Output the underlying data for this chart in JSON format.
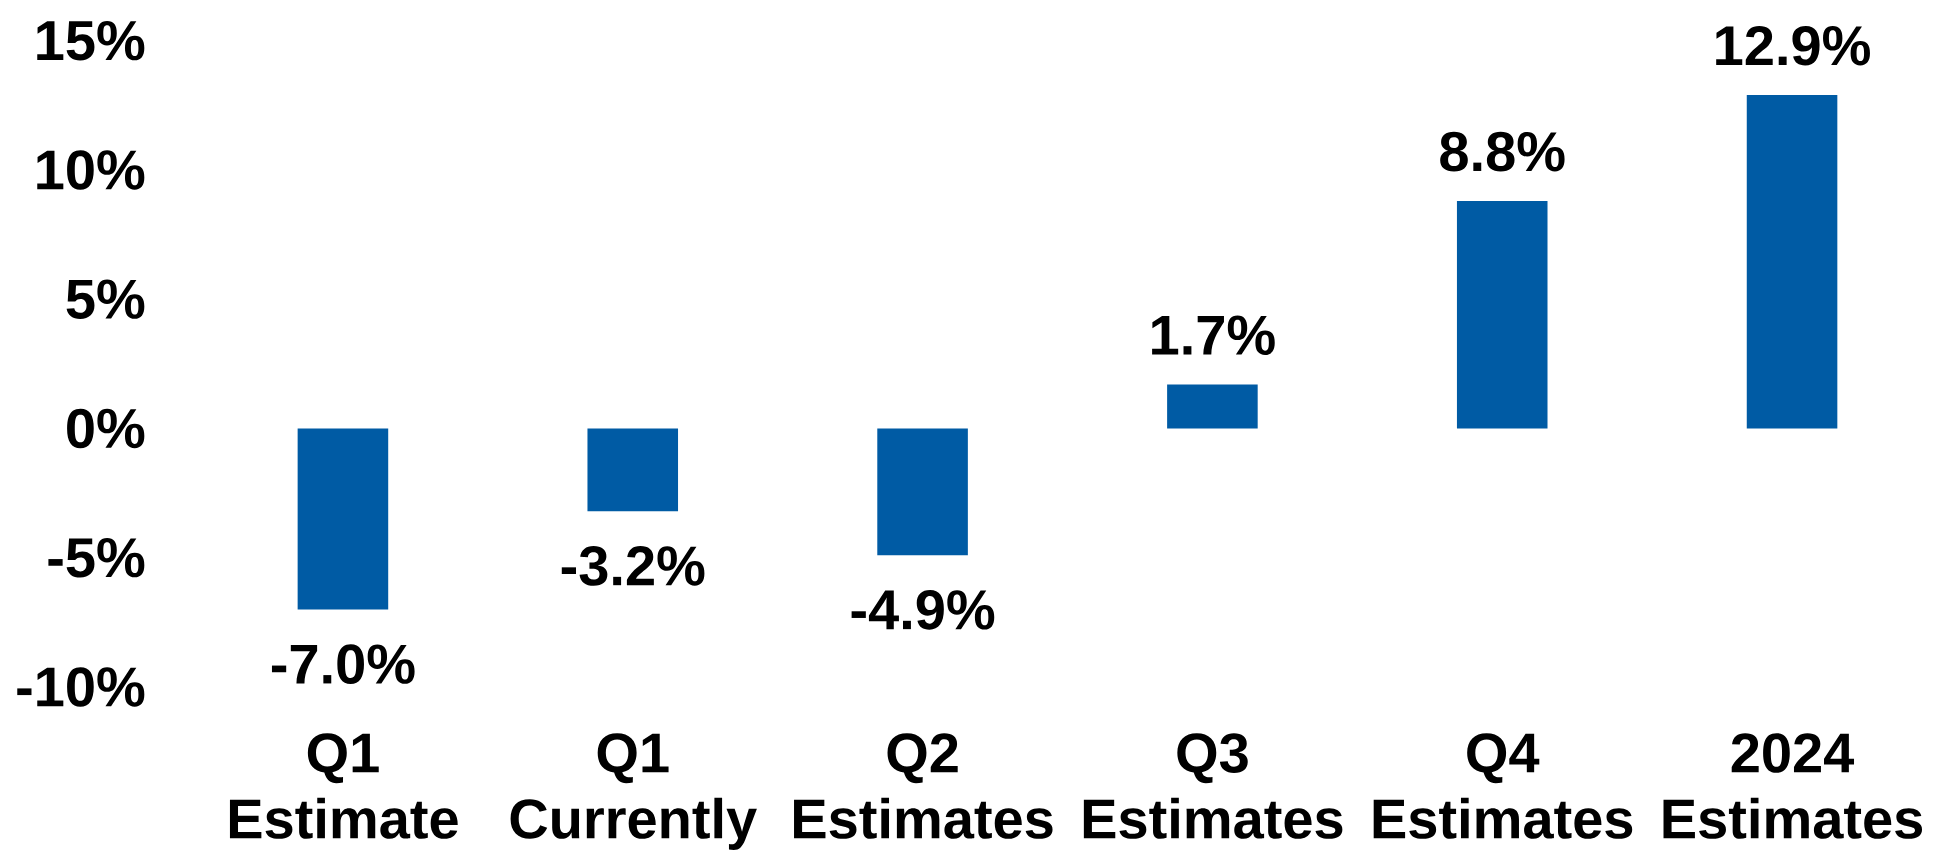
{
  "chart_data": {
    "type": "bar",
    "categories": [
      "Q1 Estimate",
      "Q1 Currently",
      "Q2 Estimates",
      "Q3 Estimates",
      "Q4 Estimates",
      "2024 Estimates"
    ],
    "values": [
      -7.0,
      -3.2,
      -4.9,
      1.7,
      8.8,
      12.9
    ],
    "value_labels": [
      "-7.0%",
      "-3.2%",
      "-4.9%",
      "1.7%",
      "8.8%",
      "12.9%"
    ],
    "color": "#005ba4",
    "ylim": [
      -10,
      15
    ],
    "yticks": [
      {
        "value": -10,
        "label": "-10%"
      },
      {
        "value": -5,
        "label": "-5%"
      },
      {
        "value": 0,
        "label": "0%"
      },
      {
        "value": 5,
        "label": "5%"
      },
      {
        "value": 10,
        "label": "10%"
      },
      {
        "value": 15,
        "label": "15%"
      }
    ]
  }
}
